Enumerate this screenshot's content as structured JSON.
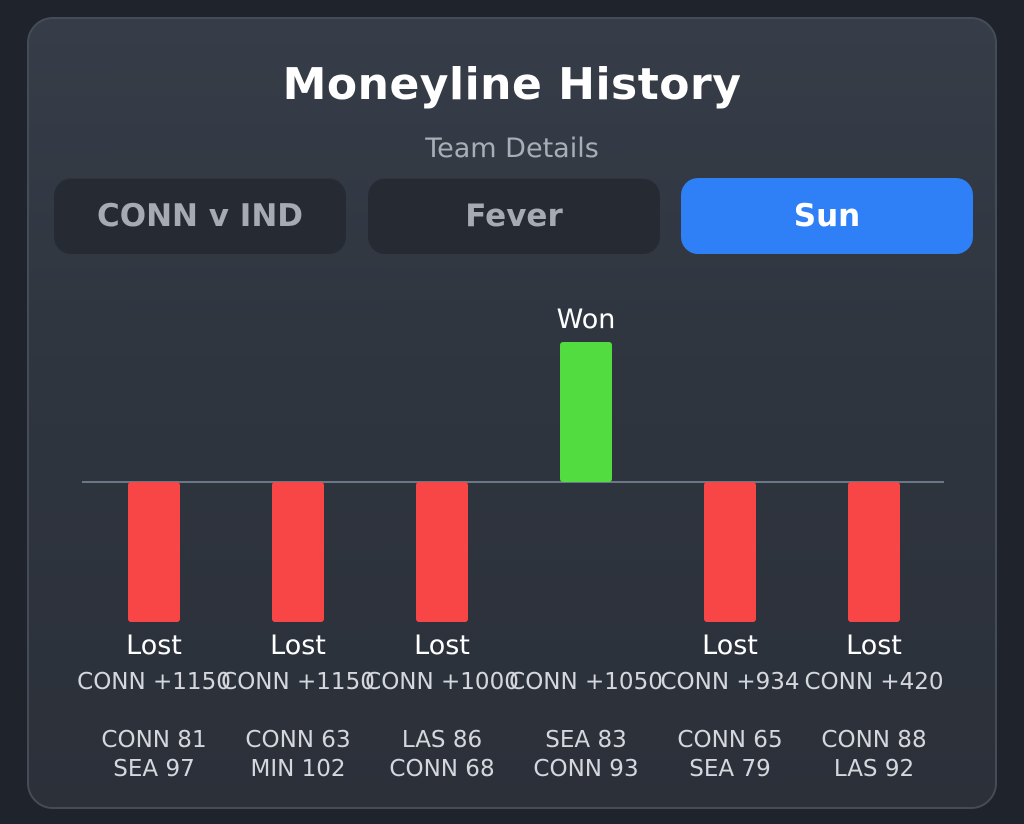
{
  "header": {
    "title": "Moneyline History",
    "subtitle": "Team Details"
  },
  "tabs": [
    {
      "label": "CONN v IND",
      "active": false
    },
    {
      "label": "Fever",
      "active": false
    },
    {
      "label": "Sun",
      "active": true
    }
  ],
  "colors": {
    "won": "#52dc3f",
    "lost": "#f84647",
    "baseline": "#6b7686",
    "accent": "#2f7ff6"
  },
  "chart_data": {
    "type": "bar",
    "games": [
      {
        "result": "Lost",
        "value": -1,
        "line": "CONN +1150",
        "score_top": "CONN 81",
        "score_bottom": "SEA 97"
      },
      {
        "result": "Lost",
        "value": -1,
        "line": "CONN +1150",
        "score_top": "CONN 63",
        "score_bottom": "MIN 102"
      },
      {
        "result": "Lost",
        "value": -1,
        "line": "CONN +1000",
        "score_top": "LAS 86",
        "score_bottom": "CONN 68"
      },
      {
        "result": "Won",
        "value": 1,
        "line": "CONN +1050",
        "score_top": "SEA 83",
        "score_bottom": "CONN 93"
      },
      {
        "result": "Lost",
        "value": -1,
        "line": "CONN +934",
        "score_top": "CONN 65",
        "score_bottom": "SEA 79"
      },
      {
        "result": "Lost",
        "value": -1,
        "line": "CONN +420",
        "score_top": "CONN 88",
        "score_bottom": "LAS 92"
      }
    ]
  }
}
